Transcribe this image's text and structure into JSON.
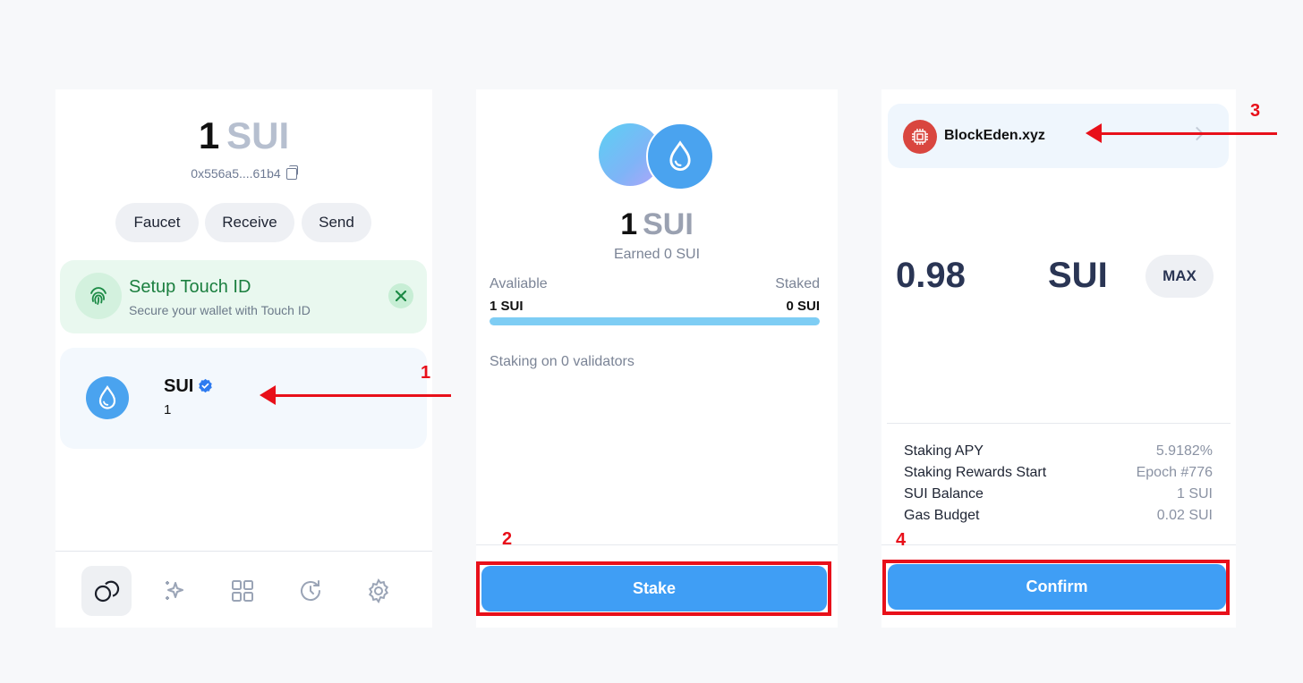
{
  "wallet": {
    "balance_amount": "1",
    "balance_unit": "SUI",
    "address": "0x556a5....61b4",
    "actions": [
      "Faucet",
      "Receive",
      "Send"
    ],
    "touch_id": {
      "title": "Setup Touch ID",
      "subtitle": "Secure your wallet with Touch ID"
    },
    "coin": {
      "name": "SUI",
      "amount": "1"
    },
    "nav_icons": [
      "coins-icon",
      "sparkle-icon",
      "apps-grid-icon",
      "history-icon",
      "settings-gear-icon"
    ]
  },
  "stake_overview": {
    "balance_amount": "1",
    "balance_unit": "SUI",
    "earned": "Earned 0 SUI",
    "available_label": "Avaliable",
    "available_value": "1 SUI",
    "staked_label": "Staked",
    "staked_value": "0 SUI",
    "available_fraction": 1.0,
    "staking_on": "Staking on 0 validators",
    "stake_button": "Stake"
  },
  "stake_confirm": {
    "validator_name": "BlockEden.xyz",
    "amount": "0.98",
    "unit": "SUI",
    "max_button": "MAX",
    "details": [
      {
        "label": "Staking APY",
        "value": "5.9182%"
      },
      {
        "label": "Staking Rewards Start",
        "value": "Epoch #776"
      },
      {
        "label": "SUI Balance",
        "value": "1 SUI"
      },
      {
        "label": "Gas Budget",
        "value": "0.02 SUI"
      }
    ],
    "confirm_button": "Confirm"
  },
  "annotations": {
    "step1": "1",
    "step2": "2",
    "step3": "3",
    "step4": "4",
    "color": "#e8101a"
  }
}
